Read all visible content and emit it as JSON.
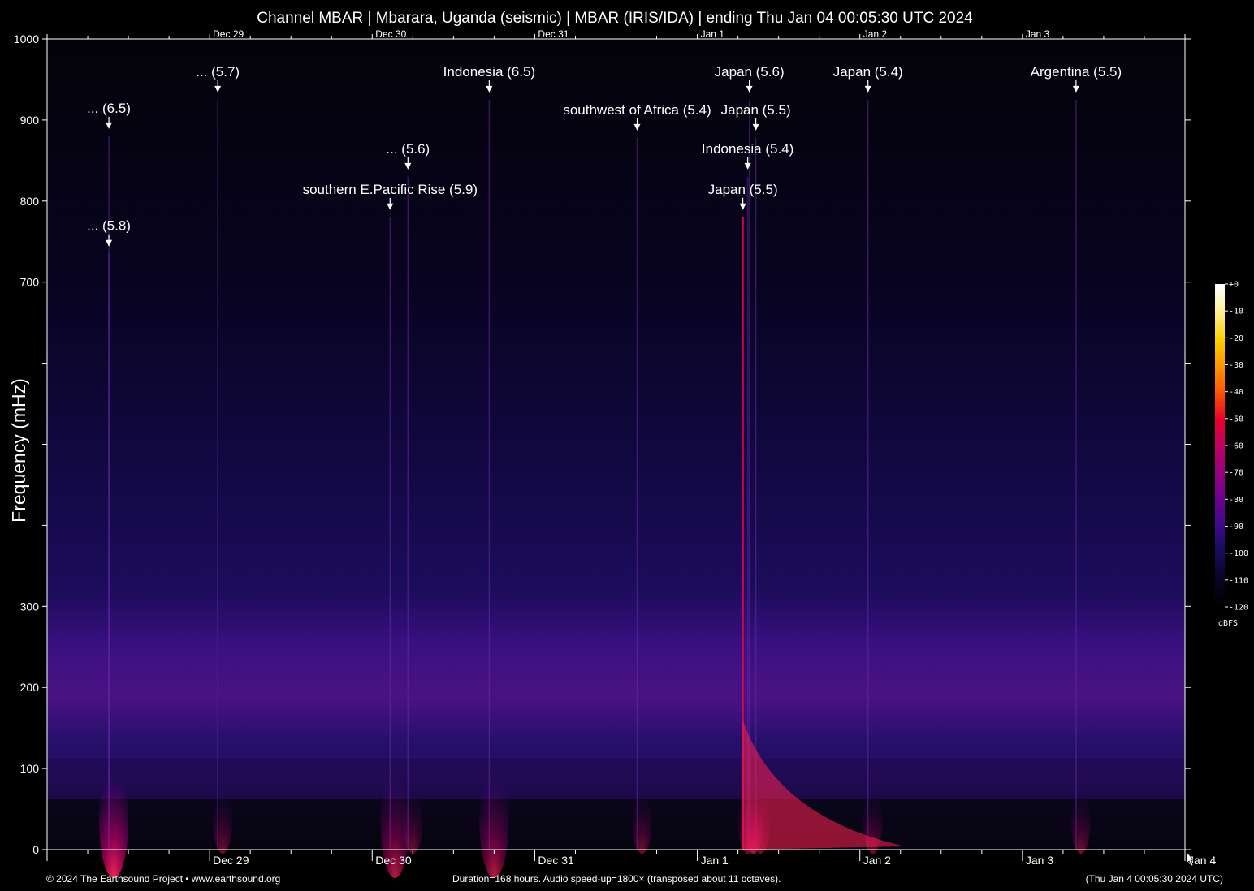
{
  "chart_data": {
    "type": "heatmap",
    "title": "Channel MBAR | Mbarara, Uganda (seismic) | MBAR (IRIS/IDA) | ending Thu Jan 04 00:05:30 UTC 2024",
    "ylabel": "Frequency (mHz)",
    "ylim": [
      0,
      1000
    ],
    "y_ticks": [
      0,
      100,
      200,
      300,
      null,
      null,
      null,
      700,
      800,
      900,
      1000
    ],
    "x_range": [
      "Dec 28 00:05:30",
      "Jan 4 00:05:30"
    ],
    "x_labels_top": [
      {
        "label": "Dec 29",
        "day": 1
      },
      {
        "label": "Dec 30",
        "day": 2
      },
      {
        "label": "Dec 31",
        "day": 3
      },
      {
        "label": "Jan  1",
        "day": 4
      },
      {
        "label": "Jan  2",
        "day": 5
      },
      {
        "label": "Jan  3",
        "day": 6
      }
    ],
    "x_labels_bottom": [
      {
        "label": "Dec 29",
        "day": 1
      },
      {
        "label": "Dec 30",
        "day": 2
      },
      {
        "label": "Dec 31",
        "day": 3
      },
      {
        "label": "Jan  1",
        "day": 4
      },
      {
        "label": "Jan  2",
        "day": 5
      },
      {
        "label": "Jan  3",
        "day": 6
      },
      {
        "label": "Jan  4",
        "day": 7
      }
    ],
    "events": [
      {
        "label": "... (6.5)",
        "day": 0.38,
        "freq": 890
      },
      {
        "label": "... (5.8)",
        "day": 0.38,
        "freq": 745
      },
      {
        "label": "... (5.7)",
        "day": 1.05,
        "freq": 935
      },
      {
        "label": "southern E.Pacific Rise (5.9)",
        "day": 2.11,
        "freq": 790
      },
      {
        "label": "... (5.6)",
        "day": 2.22,
        "freq": 840
      },
      {
        "label": "Indonesia (6.5)",
        "day": 2.72,
        "freq": 935
      },
      {
        "label": "southwest of Africa (5.4)",
        "day": 3.63,
        "freq": 888
      },
      {
        "label": "Japan (5.5)",
        "day": 4.28,
        "freq": 790
      },
      {
        "label": "Indonesia (5.4)",
        "day": 4.31,
        "freq": 840
      },
      {
        "label": "Japan (5.6)",
        "day": 4.32,
        "freq": 935
      },
      {
        "label": "Japan (5.5)",
        "day": 4.36,
        "freq": 888
      },
      {
        "label": "Japan (5.4)",
        "day": 5.05,
        "freq": 935
      },
      {
        "label": "Argentina (5.5)",
        "day": 6.33,
        "freq": 935
      }
    ],
    "colorbar": {
      "unit": "dBFS",
      "ticks": [
        "+0",
        "-10",
        "-20",
        "-30",
        "-40",
        "-50",
        "-60",
        "-70",
        "-80",
        "-90",
        "-100",
        "-110",
        "-120"
      ],
      "colors": [
        "#ffffff",
        "#fff2a0",
        "#ffd000",
        "#ff9a00",
        "#ff5a00",
        "#e8002a",
        "#c00060",
        "#98007e",
        "#6a0090",
        "#3a0a8a",
        "#160c5a",
        "#080420",
        "#000000"
      ]
    }
  },
  "footer": {
    "left": "© 2024 The Earthsound Project • www.earthsound.org",
    "center": "Duration=168 hours. Audio speed-up=1800× (transposed about 11 octaves).",
    "right": "(Thu Jan  4 00:05:30 2024 UTC)"
  }
}
